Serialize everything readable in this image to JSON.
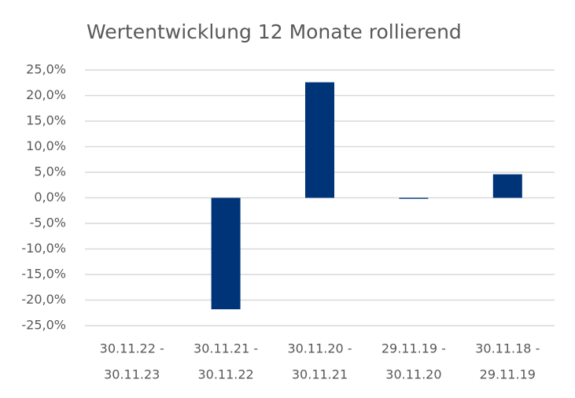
{
  "chart_data": {
    "type": "bar",
    "title": "Wertentwicklung 12 Monate rollierend",
    "categories": [
      [
        "30.11.22 -",
        "30.11.23"
      ],
      [
        "30.11.21 -",
        "30.11.22"
      ],
      [
        "30.11.20 -",
        "30.11.21"
      ],
      [
        "29.11.19 -",
        "30.11.20"
      ],
      [
        "30.11.18 -",
        "29.11.19"
      ]
    ],
    "values": [
      null,
      -21.8,
      22.6,
      -0.2,
      4.6
    ],
    "color": "#003478",
    "ylim": [
      -25,
      25
    ],
    "yticks": [
      {
        "value": -25,
        "label": "-25,0%"
      },
      {
        "value": -20,
        "label": "-20,0%"
      },
      {
        "value": -15,
        "label": "-15,0%"
      },
      {
        "value": -10,
        "label": "-10,0%"
      },
      {
        "value": -5,
        "label": "-5,0%"
      },
      {
        "value": 0,
        "label": "0,0%"
      },
      {
        "value": 5,
        "label": "5,0%"
      },
      {
        "value": 10,
        "label": "10,0%"
      },
      {
        "value": 15,
        "label": "15,0%"
      },
      {
        "value": 20,
        "label": "20,0%"
      },
      {
        "value": 25,
        "label": "25,0%"
      }
    ],
    "grid": true
  }
}
